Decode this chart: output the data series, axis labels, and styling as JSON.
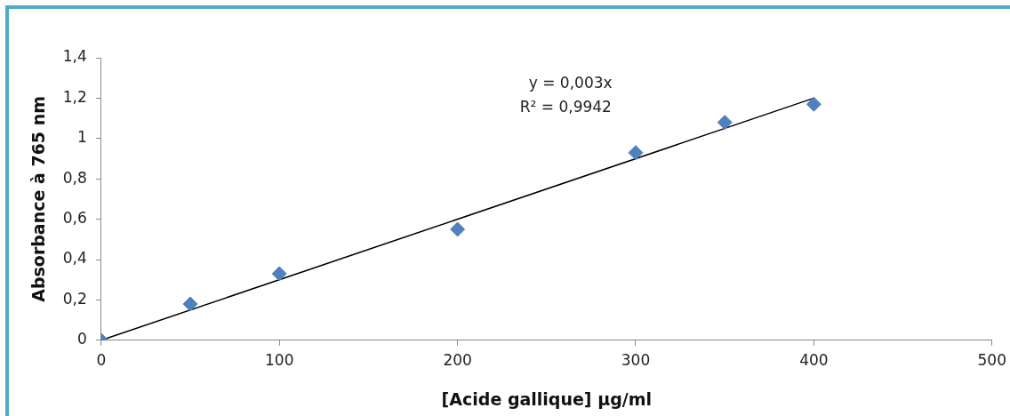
{
  "chart_data": {
    "type": "scatter",
    "xlabel": "[Acide gallique] μg/ml",
    "ylabel": "Absorbance à 765 nm",
    "annotations": [
      "y = 0,003x",
      "R² = 0,9942"
    ],
    "series": [
      {
        "color": "#4f81bd",
        "marker": "diamond",
        "x": [
          0,
          50,
          100,
          200,
          300,
          350,
          400
        ],
        "values": [
          0,
          0.18,
          0.33,
          0.55,
          0.93,
          1.08,
          1.17
        ]
      },
      {
        "type": "line",
        "color": "#000000",
        "marker": "none",
        "line_style": "solid",
        "x": [
          0,
          400
        ],
        "values": [
          0,
          1.2
        ]
      }
    ],
    "xlim": [
      0,
      500
    ],
    "xticks": [
      0,
      100,
      200,
      300,
      400,
      500
    ],
    "ylim": [
      0,
      1.4
    ],
    "yticks": [
      0,
      {
        "value": 0.2,
        "label": "0,2"
      },
      {
        "value": 0.4,
        "label": "0,4"
      },
      {
        "value": 0.6,
        "label": "0,6"
      },
      {
        "value": 0.8,
        "label": "0,8"
      },
      1,
      {
        "value": 1.2,
        "label": "1,2"
      },
      {
        "value": 1.4,
        "label": "1,4"
      }
    ],
    "grid": false,
    "legend": false
  }
}
